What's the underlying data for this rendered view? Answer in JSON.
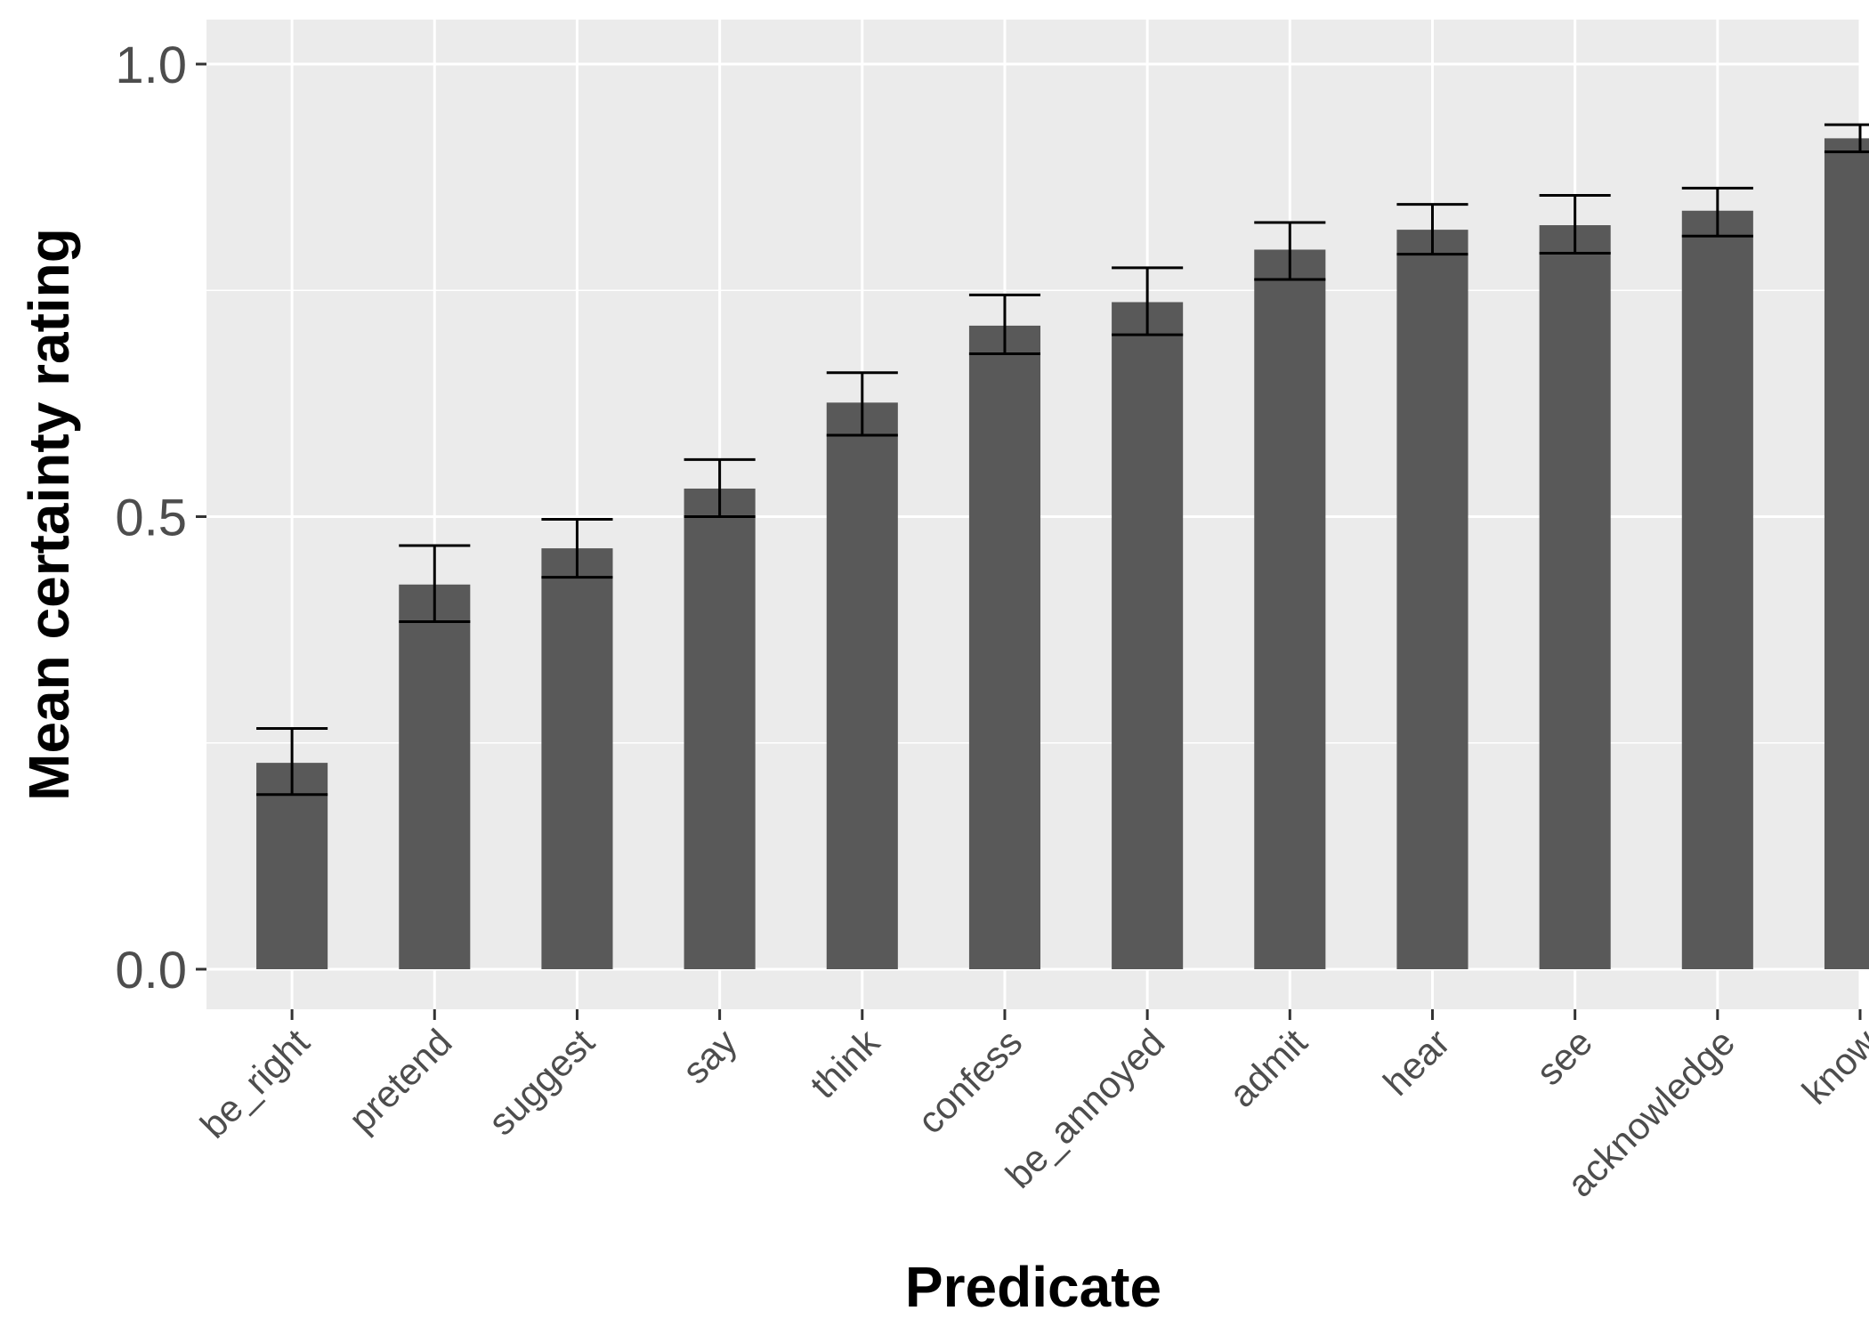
{
  "chart_data": {
    "type": "bar",
    "title": "",
    "xlabel": "Predicate",
    "ylabel": "Mean certainty rating",
    "categories": [
      "be_right",
      "pretend",
      "suggest",
      "say",
      "think",
      "confess",
      "be_annoyed",
      "admit",
      "hear",
      "see",
      "acknowledge",
      "know"
    ],
    "values": [
      0.228,
      0.425,
      0.465,
      0.531,
      0.626,
      0.711,
      0.737,
      0.795,
      0.817,
      0.822,
      0.838,
      0.918
    ],
    "error_low": [
      0.193,
      0.384,
      0.433,
      0.5,
      0.59,
      0.68,
      0.701,
      0.762,
      0.79,
      0.791,
      0.81,
      0.903
    ],
    "error_high": [
      0.266,
      0.468,
      0.497,
      0.563,
      0.659,
      0.745,
      0.775,
      0.825,
      0.845,
      0.855,
      0.863,
      0.933
    ],
    "ylim": [
      -0.05,
      1.05
    ],
    "yticks": [
      "0.0",
      "0.5",
      "1.0"
    ],
    "grid": true,
    "colors": {
      "panel": "#ebebeb",
      "grid": "#ffffff",
      "bar": "#595959",
      "errorbar": "#000000",
      "tick_text": "#4d4d4d"
    }
  }
}
